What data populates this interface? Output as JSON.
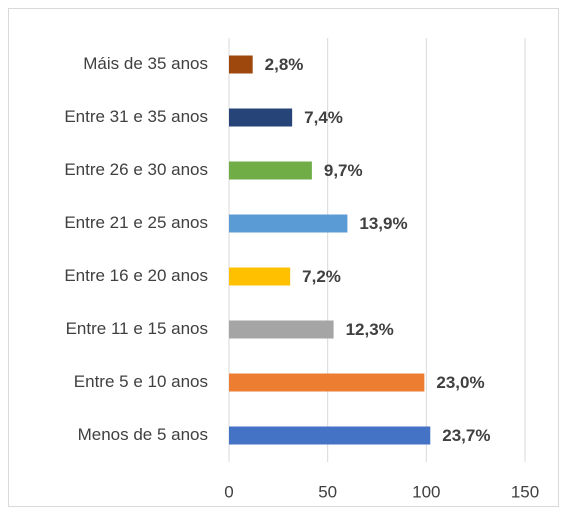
{
  "chart_data": {
    "type": "barh",
    "categories": [
      "Máis de 35 anos",
      "Entre 31 e 35 anos",
      "Entre 26 e 30 anos",
      "Entre 21 e 25 anos",
      "Entre 16 e 20 anos",
      "Entre 11 e 15 anos",
      "Entre 5 e 10 anos",
      "Menos de 5 anos"
    ],
    "values": [
      12,
      32,
      42,
      60,
      31,
      53,
      99,
      102
    ],
    "percentages": [
      2.8,
      7.4,
      9.7,
      13.9,
      7.2,
      12.3,
      23.0,
      23.7
    ],
    "percentage_labels": [
      "2,8%",
      "7,4%",
      "9,7%",
      "13,9%",
      "7,2%",
      "12,3%",
      "23,0%",
      "23,7%"
    ],
    "colors": [
      "#9e480e",
      "#264478",
      "#70ad47",
      "#5b9bd5",
      "#ffc000",
      "#a5a5a5",
      "#ed7d31",
      "#4472c4"
    ],
    "xlim": [
      0,
      150
    ],
    "xticks": [
      0,
      50,
      100,
      150
    ],
    "grid": true
  }
}
